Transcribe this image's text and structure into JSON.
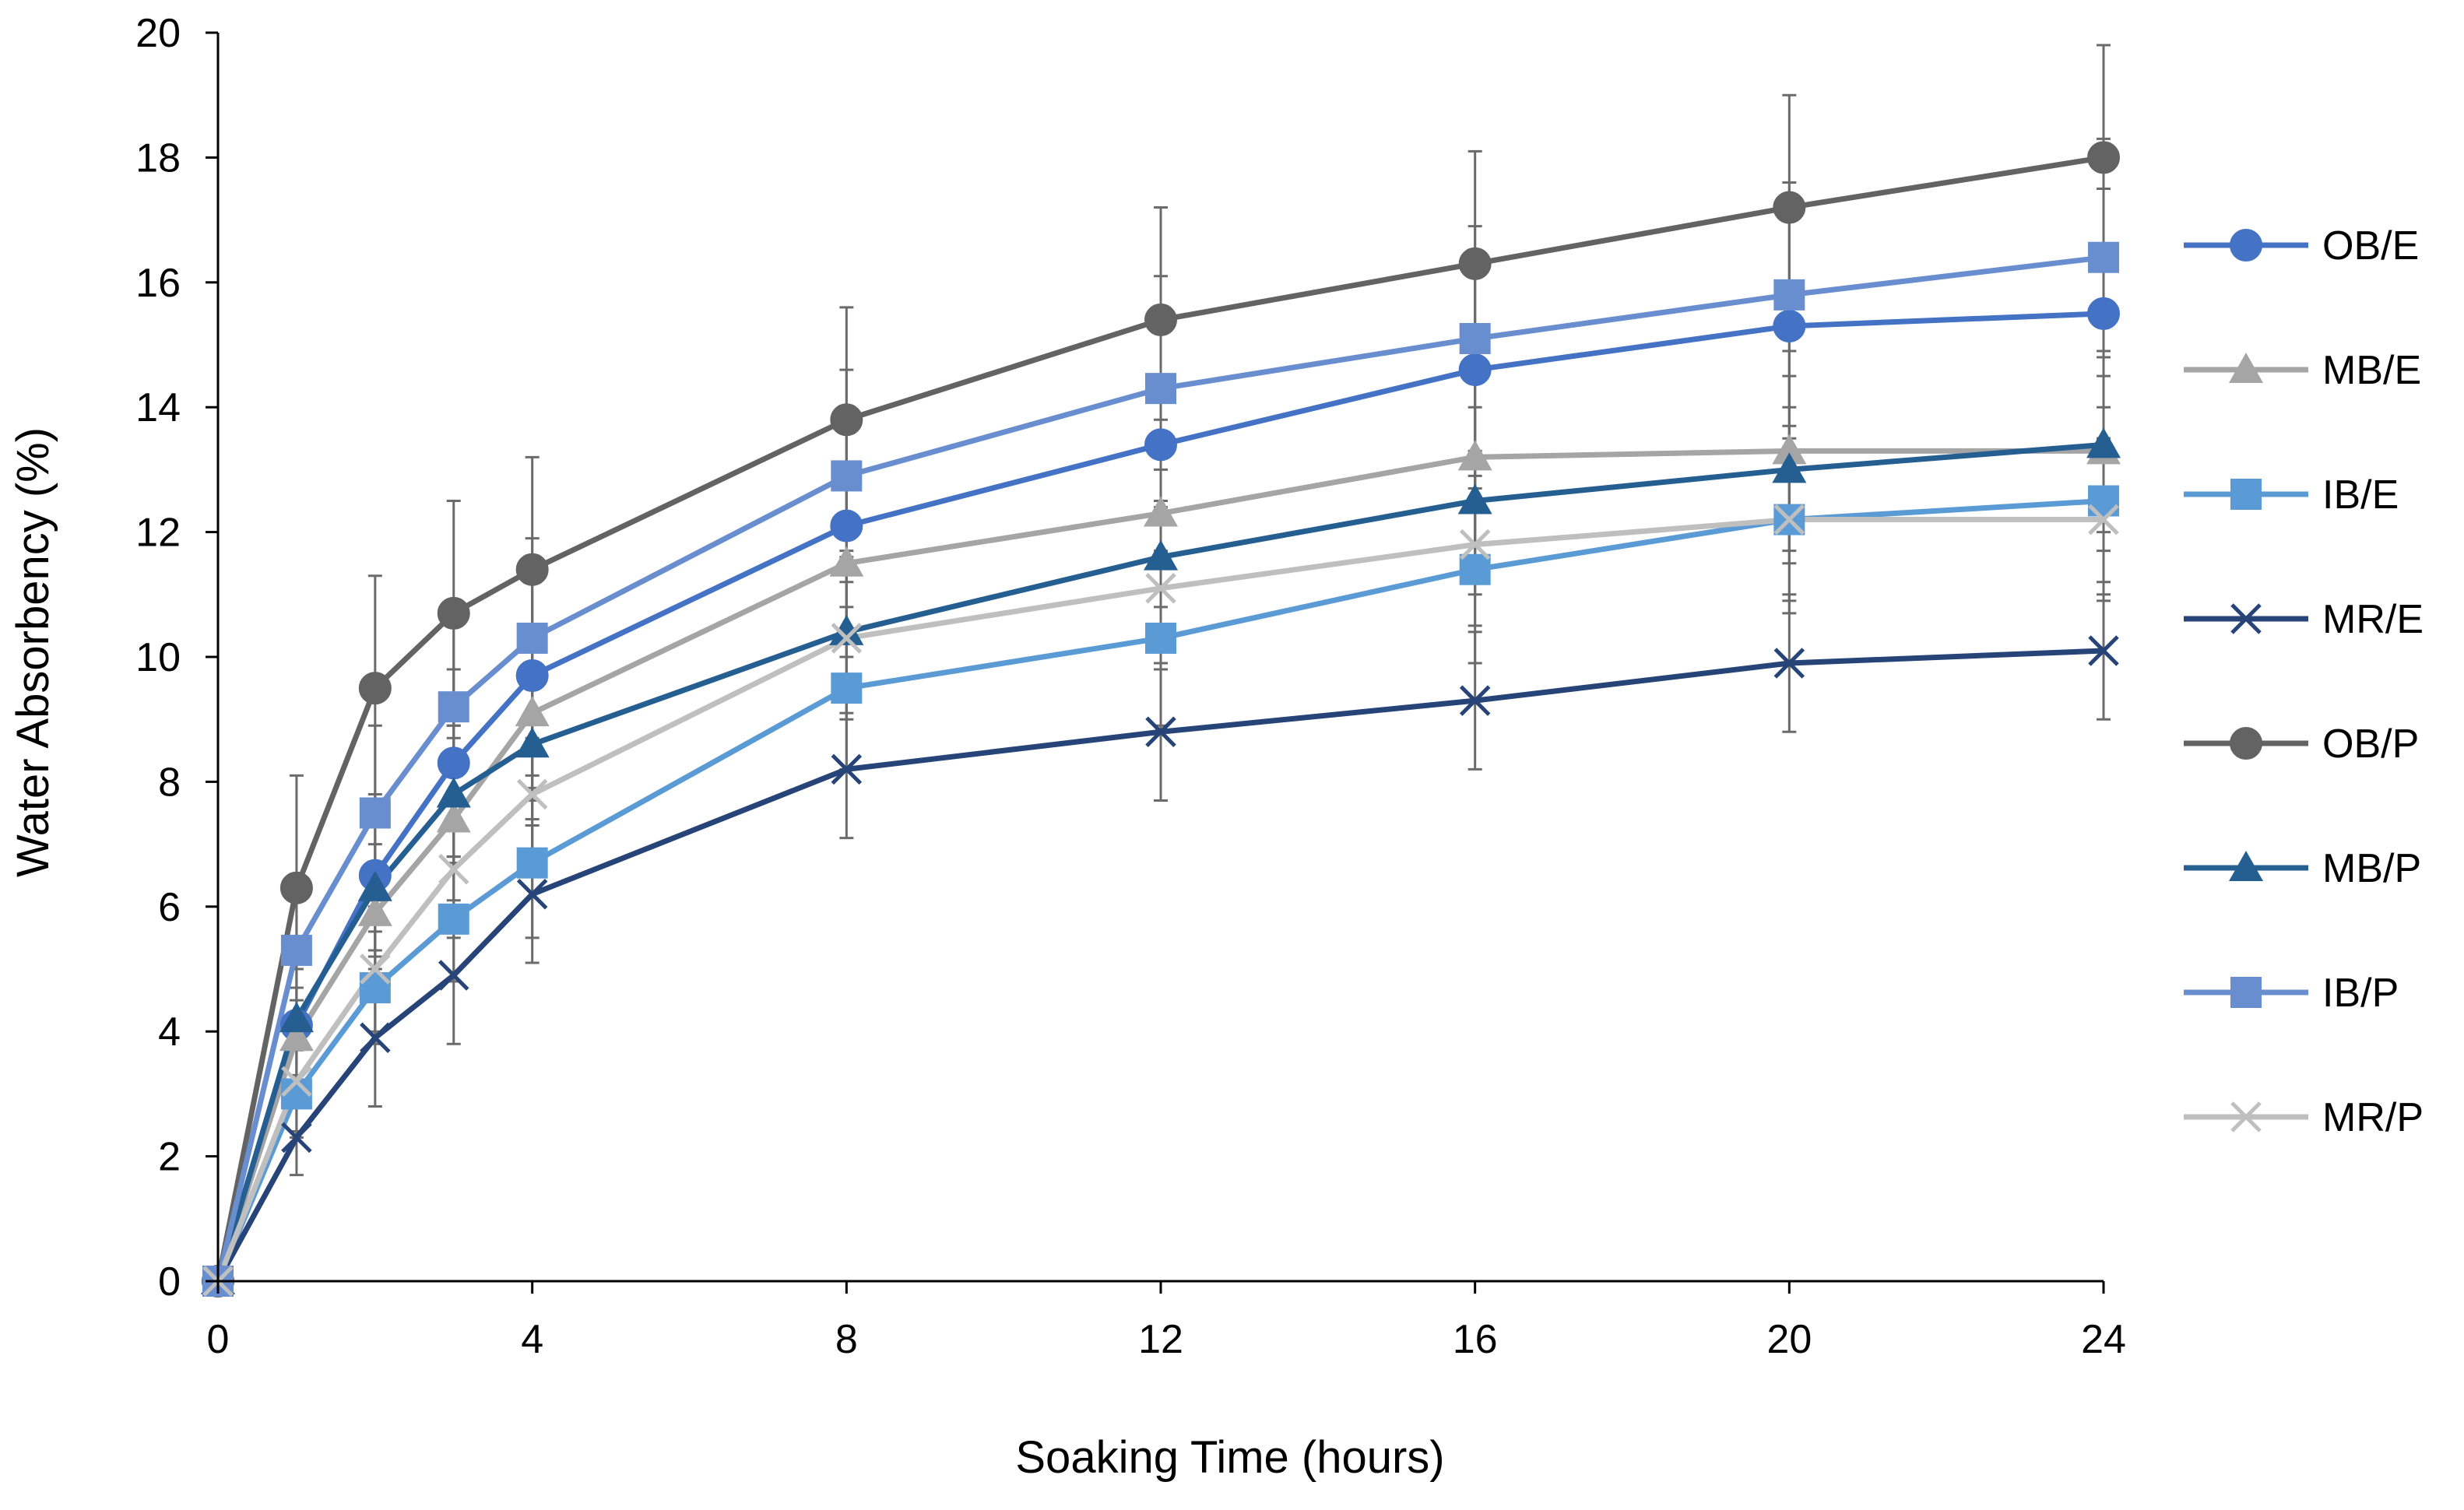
{
  "chart_data": {
    "type": "line",
    "title": "",
    "xlabel": "Soaking Time (hours)",
    "ylabel": "Water Absorbency (%)",
    "xlim": [
      0,
      24
    ],
    "ylim": [
      0,
      20
    ],
    "xticks": [
      0,
      4,
      8,
      12,
      16,
      20,
      24
    ],
    "yticks": [
      0,
      2,
      4,
      6,
      8,
      10,
      12,
      14,
      16,
      18,
      20
    ],
    "grid": false,
    "legend_position": "right",
    "x": [
      0,
      1,
      2,
      3,
      4,
      8,
      12,
      16,
      20,
      24
    ],
    "series": [
      {
        "name": "OB/E",
        "color": "#4472c4",
        "marker": "circle",
        "values": [
          0,
          4.1,
          6.5,
          8.3,
          9.7,
          12.1,
          13.4,
          14.6,
          15.3,
          15.5
        ],
        "errors": [
          0,
          0.9,
          1.3,
          1.5,
          1.6,
          1.7,
          1.8,
          1.9,
          2.0,
          2.0
        ]
      },
      {
        "name": "MB/E",
        "color": "#a5a5a5",
        "marker": "triangle",
        "values": [
          0,
          3.9,
          5.9,
          7.4,
          9.1,
          11.5,
          12.3,
          13.2,
          13.3,
          13.3
        ],
        "errors": [
          0,
          0.8,
          1.1,
          1.3,
          1.4,
          1.5,
          1.5,
          1.6,
          1.6,
          1.6
        ]
      },
      {
        "name": "IB/E",
        "color": "#5b9bd5",
        "marker": "square",
        "values": [
          0,
          3.0,
          4.7,
          5.8,
          6.7,
          9.5,
          10.3,
          11.4,
          12.2,
          12.5
        ],
        "errors": [
          0,
          0.7,
          0.9,
          1.0,
          1.2,
          1.3,
          1.4,
          1.5,
          1.5,
          1.5
        ]
      },
      {
        "name": "MR/E",
        "color": "#264478",
        "marker": "x",
        "values": [
          0,
          2.3,
          3.9,
          4.9,
          6.2,
          8.2,
          8.8,
          9.3,
          9.9,
          10.1
        ],
        "errors": [
          0,
          0.6,
          1.1,
          1.1,
          1.1,
          1.1,
          1.1,
          1.1,
          1.1,
          1.1
        ]
      },
      {
        "name": "OB/P",
        "color": "#636363",
        "marker": "circle",
        "values": [
          0,
          6.3,
          9.5,
          10.7,
          11.4,
          13.8,
          15.4,
          16.3,
          17.2,
          18.0
        ],
        "errors": [
          0,
          1.8,
          1.8,
          1.8,
          1.8,
          1.8,
          1.8,
          1.8,
          1.8,
          1.8
        ]
      },
      {
        "name": "MB/P",
        "color": "#255e91",
        "marker": "triangle",
        "values": [
          0,
          4.2,
          6.3,
          7.8,
          8.6,
          10.4,
          11.6,
          12.5,
          13.0,
          13.4
        ],
        "errors": [
          0,
          0.9,
          1.0,
          1.1,
          1.2,
          1.3,
          1.4,
          1.5,
          1.5,
          1.4
        ]
      },
      {
        "name": "IB/P",
        "color": "#698ed0",
        "marker": "square",
        "values": [
          0,
          5.3,
          7.5,
          9.2,
          10.3,
          12.9,
          14.3,
          15.1,
          15.8,
          16.4
        ],
        "errors": [
          0,
          1.2,
          1.4,
          1.5,
          1.6,
          1.7,
          1.8,
          1.8,
          1.8,
          1.9
        ]
      },
      {
        "name": "MR/P",
        "color": "#bfbfbf",
        "marker": "x",
        "values": [
          0,
          3.2,
          5.0,
          6.6,
          7.8,
          10.3,
          11.1,
          11.8,
          12.2,
          12.2
        ],
        "errors": [
          0,
          0.8,
          1.0,
          1.1,
          1.2,
          1.3,
          1.3,
          1.3,
          1.3,
          1.3
        ]
      }
    ]
  }
}
